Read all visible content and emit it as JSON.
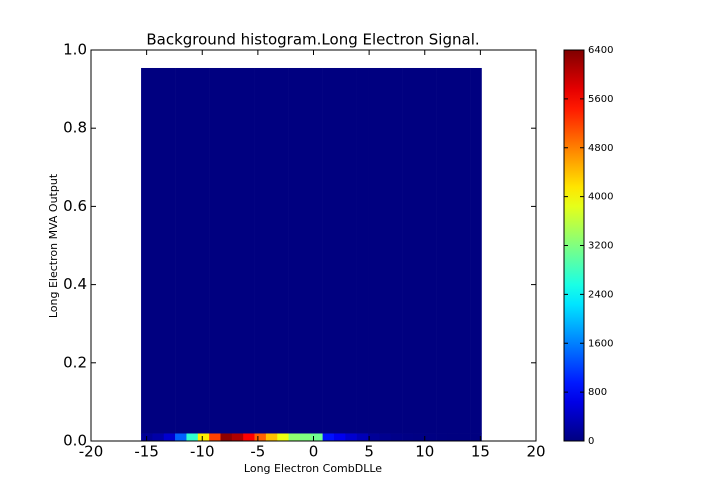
{
  "chart_data": {
    "type": "heatmap",
    "title": "Background histogram.Long Electron Signal.",
    "xlabel": "Long Electron CombDLLe",
    "ylabel": "Long Electron MVA Output",
    "x_bins": [
      -15.5,
      -14.48,
      -13.46,
      -12.44,
      -11.42,
      -10.4,
      -9.38,
      -8.36,
      -7.34,
      -6.32,
      -5.3,
      -4.28,
      -3.26,
      -2.24,
      -1.22,
      -0.2,
      0.82,
      1.84,
      2.86,
      3.88,
      4.9,
      5.92,
      6.94,
      7.96,
      8.98,
      10.0,
      11.02,
      12.04,
      13.06,
      14.08,
      15.1
    ],
    "y_bins": [
      0,
      0.02,
      0.954
    ],
    "values": [
      [
        150,
        250,
        500,
        1400,
        2700,
        4100,
        5200,
        6300,
        6100,
        5600,
        5000,
        4400,
        3900,
        3300,
        3200,
        3100,
        900,
        700,
        500,
        350,
        150,
        100,
        60,
        40,
        30,
        20,
        10,
        5,
        0,
        0
      ],
      [
        0,
        0,
        0,
        0,
        0,
        0,
        0,
        0,
        0,
        0,
        0,
        0,
        0,
        0,
        0,
        0,
        0,
        0,
        0,
        0,
        0,
        0,
        0,
        0,
        0,
        0,
        0,
        0,
        0,
        0
      ]
    ],
    "colormap": "jet",
    "xlim": [
      -20,
      20
    ],
    "xticks": [
      -20,
      -15,
      -10,
      -5,
      0,
      5,
      10,
      15,
      20
    ],
    "ylim": [
      0,
      1
    ],
    "yticks": [
      {
        "value": 0,
        "label": "0.0"
      },
      {
        "value": 0.2,
        "label": "0.2"
      },
      {
        "value": 0.4,
        "label": "0.4"
      },
      {
        "value": 0.6,
        "label": "0.6"
      },
      {
        "value": 0.8,
        "label": "0.8"
      },
      {
        "value": 1,
        "label": "1.0"
      }
    ],
    "clim": [
      0,
      6400
    ],
    "cticks": [
      0,
      800,
      1600,
      2400,
      3200,
      4000,
      4800,
      5600,
      6400
    ]
  }
}
